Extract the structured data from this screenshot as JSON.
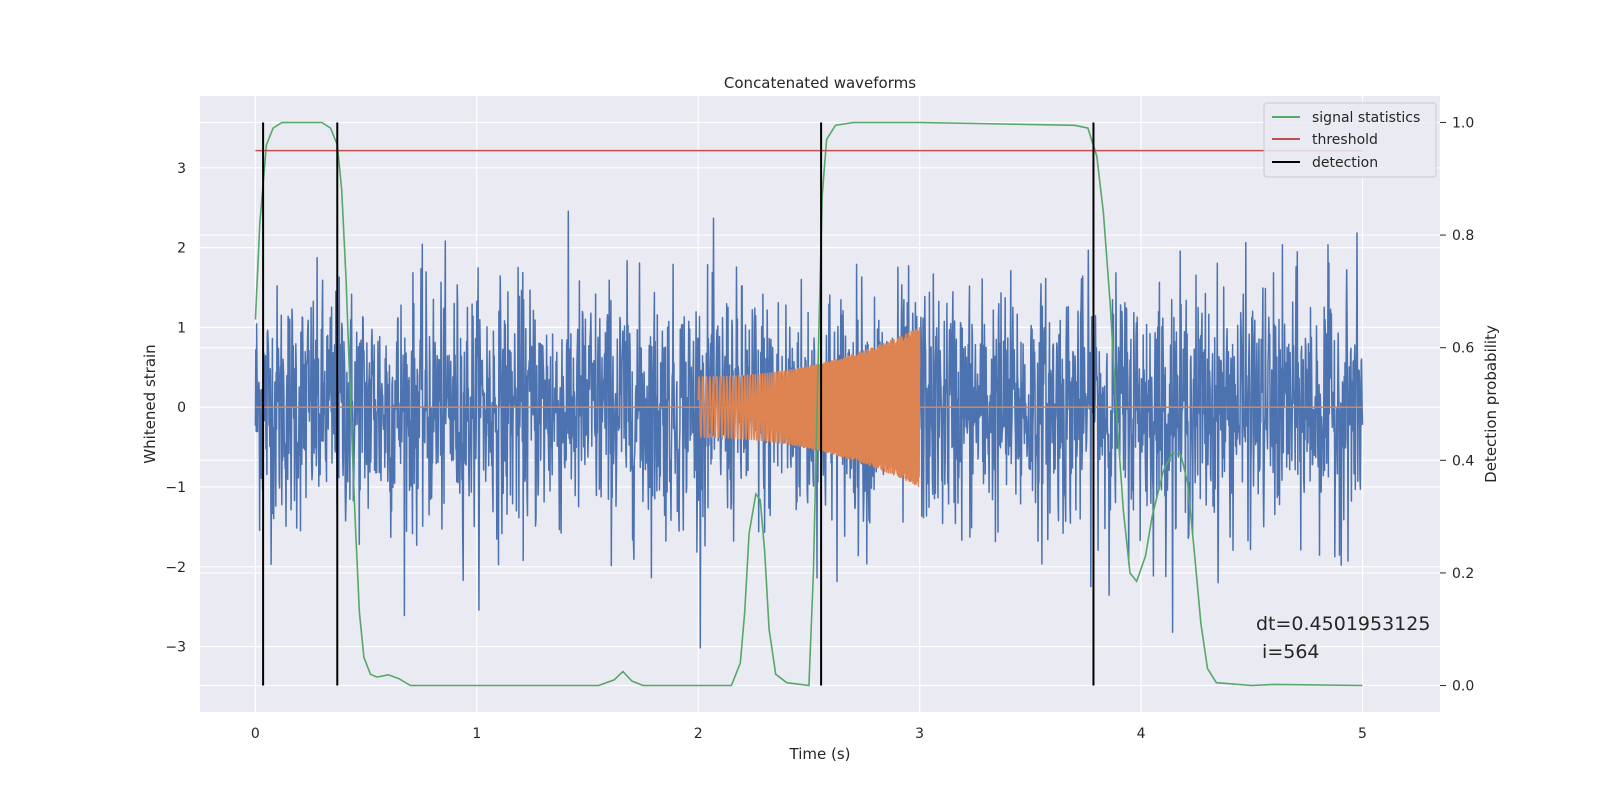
{
  "chart_data": {
    "type": "line",
    "title": "Concatenated waveforms",
    "xlabel": "Time (s)",
    "ylabel": "Whitened strain",
    "y2label": "Detection probability",
    "xlim": [
      -0.25,
      5.35
    ],
    "ylim": [
      -3.82,
      3.9
    ],
    "y2lim": [
      -0.047,
      1.047
    ],
    "x_ticks": [
      0,
      1,
      2,
      3,
      4,
      5
    ],
    "y_ticks": [
      -3,
      -2,
      -1,
      0,
      1,
      2,
      3
    ],
    "y2_ticks": [
      0.0,
      0.2,
      0.4,
      0.6,
      0.8,
      1.0
    ],
    "grid": true,
    "legend_position": "top-right",
    "legend": [
      {
        "label": "signal statistics",
        "color": "#55a868"
      },
      {
        "label": "threshold",
        "color": "#c44e52"
      },
      {
        "label": "detection",
        "color": "#000000"
      }
    ],
    "colors": {
      "noise": "#4c72b0",
      "injection": "#dd8452",
      "signal_statistics": "#55a868",
      "threshold": "#c44e52",
      "detection": "#000000",
      "background": "#eaeaf2",
      "grid": "#ffffff"
    },
    "series": [
      {
        "name": "",
        "kind": "noise",
        "x_range": [
          0,
          5
        ],
        "std": 0.75
      },
      {
        "name": "",
        "kind": "injection",
        "x_range": [
          2,
          3
        ],
        "amplitude": [
          0.38,
          1.0
        ]
      },
      {
        "name": "signal statistics",
        "axis": "right",
        "x": [
          0,
          0.02,
          0.05,
          0.08,
          0.12,
          0.2,
          0.3,
          0.34,
          0.37,
          0.39,
          0.41,
          0.43,
          0.45,
          0.47,
          0.49,
          0.52,
          0.55,
          0.6,
          0.65,
          0.7,
          1.0,
          1.55,
          1.62,
          1.66,
          1.7,
          1.75,
          2.0,
          2.15,
          2.19,
          2.21,
          2.23,
          2.26,
          2.28,
          2.3,
          2.32,
          2.35,
          2.4,
          2.5,
          2.52,
          2.54,
          2.56,
          2.58,
          2.62,
          2.7,
          3.0,
          3.7,
          3.76,
          3.8,
          3.83,
          3.86,
          3.89,
          3.92,
          3.95,
          3.98,
          4.02,
          4.05,
          4.1,
          4.14,
          4.18,
          4.21,
          4.24,
          4.27,
          4.3,
          4.34,
          4.5,
          4.6,
          5.0
        ],
        "y": [
          0.65,
          0.82,
          0.96,
          0.99,
          1.0,
          1.0,
          1.0,
          0.99,
          0.96,
          0.88,
          0.72,
          0.5,
          0.3,
          0.13,
          0.05,
          0.02,
          0.015,
          0.019,
          0.012,
          0.0,
          0.0,
          0.0,
          0.01,
          0.025,
          0.008,
          0.0,
          0.0,
          0.0,
          0.04,
          0.13,
          0.27,
          0.34,
          0.33,
          0.24,
          0.1,
          0.02,
          0.005,
          0.0,
          0.2,
          0.55,
          0.87,
          0.97,
          0.995,
          1.0,
          1.0,
          0.995,
          0.99,
          0.94,
          0.84,
          0.68,
          0.48,
          0.31,
          0.2,
          0.185,
          0.23,
          0.3,
          0.38,
          0.413,
          0.41,
          0.36,
          0.24,
          0.11,
          0.03,
          0.005,
          0.0,
          0.002,
          0.0
        ]
      },
      {
        "name": "threshold",
        "axis": "right",
        "x": [
          0,
          5
        ],
        "y": [
          0.95,
          0.95
        ]
      }
    ],
    "detections_x": [
      0.035,
      0.37,
      2.555,
      3.785
    ],
    "annotations": [
      "dt=0.4501953125",
      " i=564"
    ]
  }
}
